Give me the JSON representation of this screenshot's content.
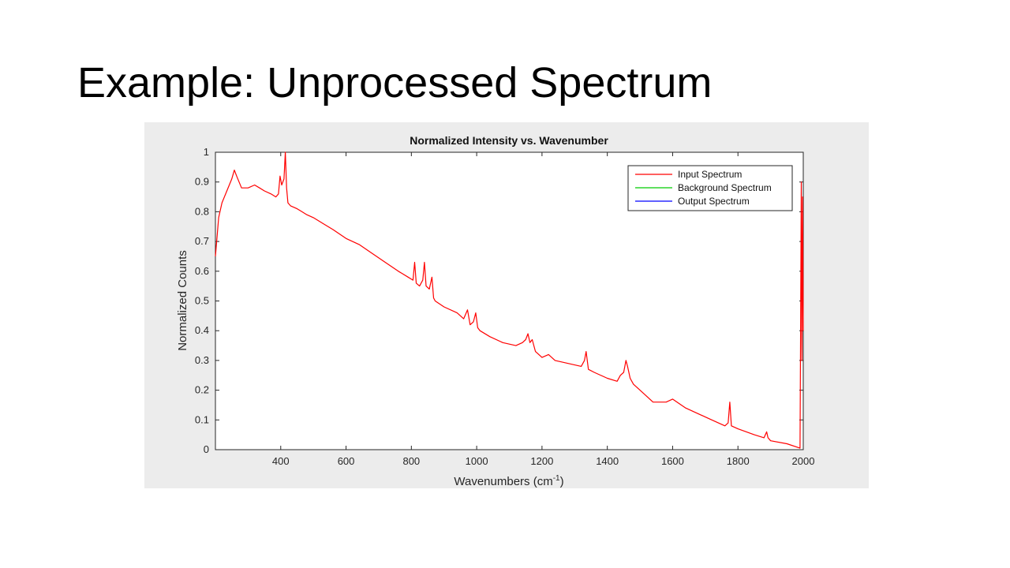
{
  "slide": {
    "title": "Example: Unprocessed Spectrum"
  },
  "chart_data": {
    "type": "line",
    "title": "Normalized Intensity vs. Wavenumber",
    "xlabel": "Wavenumbers (cm",
    "xlabel_sup": "-1",
    "xlabel_suffix": ")",
    "ylabel": "Normalized Counts",
    "xlim": [
      200,
      2000
    ],
    "ylim": [
      0,
      1
    ],
    "xticks": [
      400,
      600,
      800,
      1000,
      1200,
      1400,
      1600,
      1800,
      2000
    ],
    "yticks": [
      0,
      0.1,
      0.2,
      0.3,
      0.4,
      0.5,
      0.6,
      0.7,
      0.8,
      0.9,
      1
    ],
    "ytick_labels": [
      "0",
      "0.1",
      "0.2",
      "0.3",
      "0.4",
      "0.5",
      "0.6",
      "0.7",
      "0.8",
      "0.9",
      "1"
    ],
    "grid": false,
    "legend_position": "top-right",
    "legend": [
      {
        "name": "Input Spectrum",
        "color": "#ff0000"
      },
      {
        "name": "Background Spectrum",
        "color": "#00cc00"
      },
      {
        "name": "Output Spectrum",
        "color": "#0000ff"
      }
    ],
    "series": [
      {
        "name": "Input Spectrum",
        "color": "#ff0000",
        "x": [
          200,
          210,
          220,
          235,
          250,
          258,
          265,
          280,
          300,
          320,
          335,
          350,
          370,
          385,
          393,
          398,
          403,
          410,
          414,
          418,
          422,
          430,
          450,
          480,
          500,
          530,
          560,
          600,
          640,
          680,
          720,
          760,
          790,
          805,
          810,
          815,
          825,
          835,
          840,
          845,
          855,
          863,
          868,
          873,
          900,
          940,
          960,
          972,
          980,
          990,
          997,
          1003,
          1010,
          1040,
          1080,
          1120,
          1140,
          1150,
          1157,
          1163,
          1170,
          1180,
          1200,
          1220,
          1240,
          1280,
          1320,
          1330,
          1335,
          1342,
          1360,
          1400,
          1430,
          1440,
          1450,
          1457,
          1462,
          1470,
          1480,
          1500,
          1540,
          1580,
          1600,
          1640,
          1680,
          1720,
          1760,
          1770,
          1775,
          1780,
          1800,
          1850,
          1880,
          1888,
          1892,
          1900,
          1950,
          1990,
          1994,
          1996,
          1998,
          2000
        ],
        "y": [
          0.65,
          0.78,
          0.83,
          0.87,
          0.91,
          0.94,
          0.92,
          0.88,
          0.88,
          0.89,
          0.88,
          0.87,
          0.86,
          0.85,
          0.86,
          0.92,
          0.89,
          0.91,
          1.0,
          0.88,
          0.83,
          0.82,
          0.81,
          0.79,
          0.78,
          0.76,
          0.74,
          0.71,
          0.69,
          0.66,
          0.63,
          0.6,
          0.58,
          0.57,
          0.63,
          0.56,
          0.55,
          0.57,
          0.63,
          0.55,
          0.54,
          0.58,
          0.51,
          0.5,
          0.48,
          0.46,
          0.44,
          0.47,
          0.42,
          0.43,
          0.46,
          0.41,
          0.4,
          0.38,
          0.36,
          0.35,
          0.36,
          0.37,
          0.39,
          0.36,
          0.37,
          0.33,
          0.31,
          0.32,
          0.3,
          0.29,
          0.28,
          0.3,
          0.33,
          0.27,
          0.26,
          0.24,
          0.23,
          0.25,
          0.26,
          0.3,
          0.28,
          0.24,
          0.22,
          0.2,
          0.16,
          0.16,
          0.17,
          0.14,
          0.12,
          0.1,
          0.08,
          0.09,
          0.16,
          0.08,
          0.07,
          0.05,
          0.04,
          0.06,
          0.04,
          0.03,
          0.02,
          0.005,
          0.9,
          0.3,
          0.85,
          0.4
        ]
      }
    ]
  }
}
